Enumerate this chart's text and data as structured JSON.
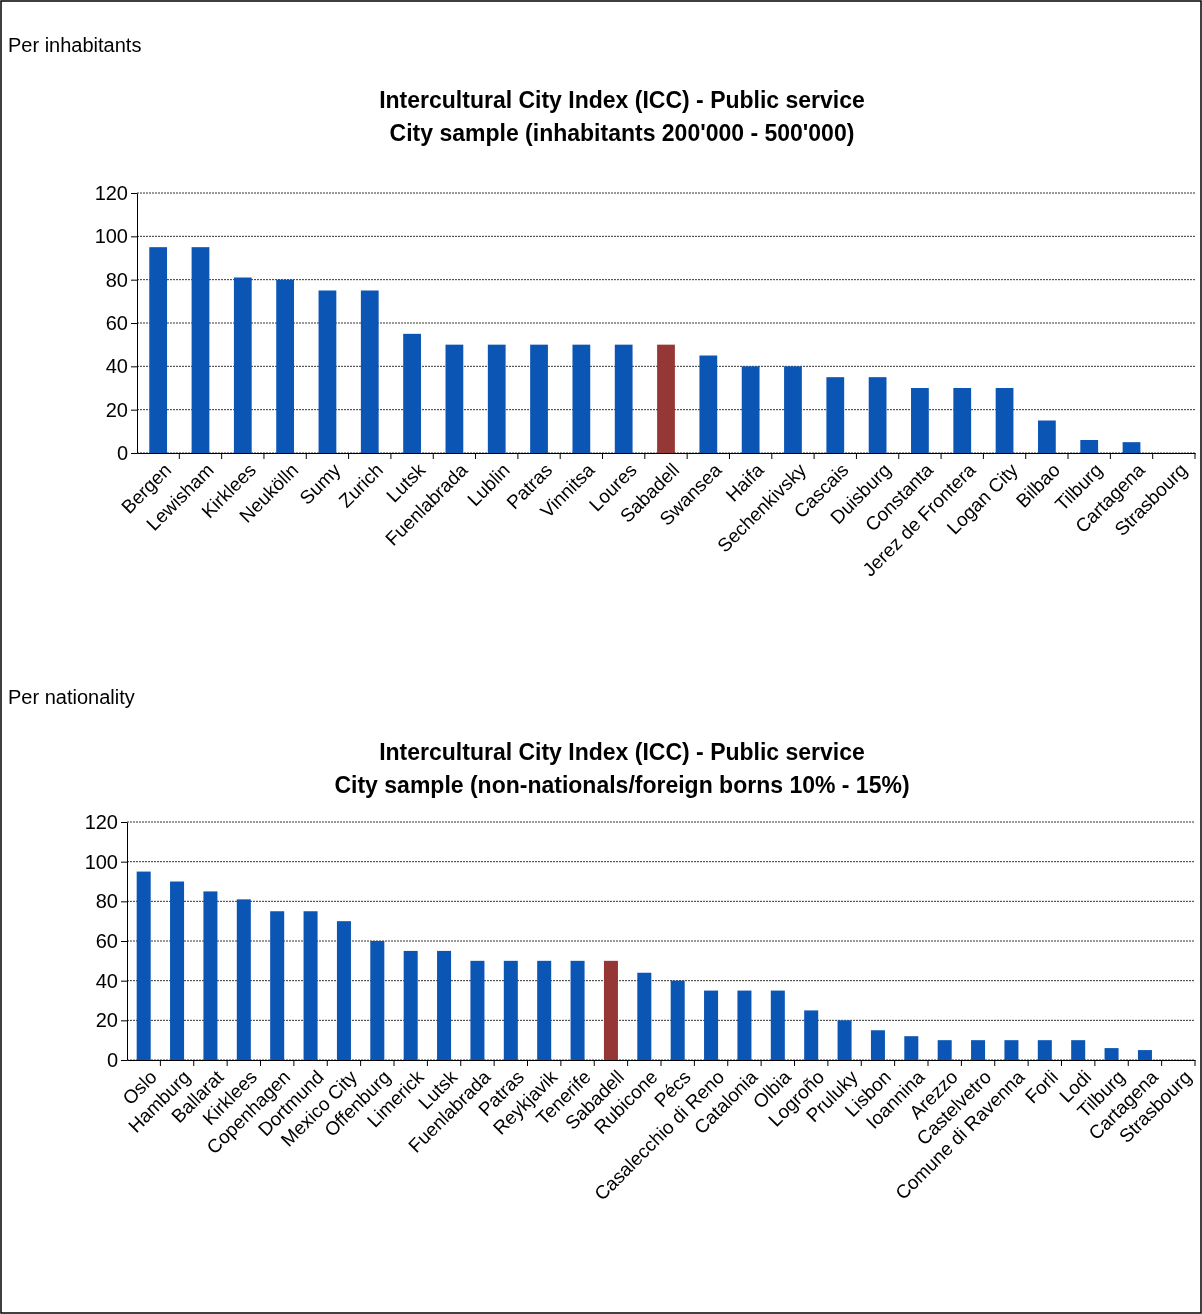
{
  "chart_data": [
    {
      "type": "bar",
      "title": "Intercultural City Index (ICC) - Public service\nCity sample (inhabitants 200'000 - 500'000)",
      "annotations": [
        "Per inhabitants"
      ],
      "categories": [
        "Bergen",
        "Lewisham",
        "Kirklees",
        "Neukölln",
        "Sumy",
        "Zurich",
        "Lutsk",
        "Fuenlabrada",
        "Lublin",
        "Patras",
        "Vinnitsa",
        "Loures",
        "Sabadell",
        "Swansea",
        "Haifa",
        "Sechenkivsky",
        "Cascais",
        "Duisburg",
        "Constanta",
        "Jerez de Frontera",
        "Logan City",
        "Bilbao",
        "Tilburg",
        "Cartagena",
        "Strasbourg"
      ],
      "values": [
        95,
        95,
        81,
        80,
        75,
        75,
        55,
        50,
        50,
        50,
        50,
        50,
        50,
        45,
        40,
        40,
        35,
        35,
        30,
        30,
        30,
        15,
        6,
        5,
        0
      ],
      "colors": [
        "#0b55b5",
        "#0b55b5",
        "#0b55b5",
        "#0b55b5",
        "#0b55b5",
        "#0b55b5",
        "#0b55b5",
        "#0b55b5",
        "#0b55b5",
        "#0b55b5",
        "#0b55b5",
        "#0b55b5",
        "#953735",
        "#0b55b5",
        "#0b55b5",
        "#0b55b5",
        "#0b55b5",
        "#0b55b5",
        "#0b55b5",
        "#0b55b5",
        "#0b55b5",
        "#0b55b5",
        "#0b55b5",
        "#0b55b5",
        "#0b55b5"
      ],
      "ylim": [
        0,
        120
      ],
      "yticks": [
        0,
        20,
        40,
        60,
        80,
        100,
        120
      ],
      "grid": "y"
    },
    {
      "type": "bar",
      "title": "Intercultural City Index (ICC) - Public service\nCity sample (non-nationals/foreign borns 10% - 15%)",
      "annotations": [
        "Per nationality"
      ],
      "categories": [
        "Oslo",
        "Hamburg",
        "Ballarat",
        "Kirklees",
        "Copenhagen",
        "Dortmund",
        "Mexico City",
        "Offenburg",
        "Limerick",
        "Lutsk",
        "Fuenlabrada",
        "Patras",
        "Reykjavik",
        "Tenerife",
        "Sabadell",
        "Rubicone",
        "Pécs",
        "Casalecchio di Reno",
        "Catalonia",
        "Olbia",
        "Logroño",
        "Pruluky",
        "Lisbon",
        "Ioannina",
        "Arezzo",
        "Castelvetro",
        "Comune di Ravenna",
        "Forli",
        "Lodi",
        "Tilburg",
        "Cartagena",
        "Strasbourg"
      ],
      "values": [
        95,
        90,
        85,
        81,
        75,
        75,
        70,
        60,
        55,
        55,
        50,
        50,
        50,
        50,
        50,
        44,
        40,
        35,
        35,
        35,
        25,
        20,
        15,
        12,
        10,
        10,
        10,
        10,
        10,
        6,
        5,
        0
      ],
      "colors": [
        "#0b55b5",
        "#0b55b5",
        "#0b55b5",
        "#0b55b5",
        "#0b55b5",
        "#0b55b5",
        "#0b55b5",
        "#0b55b5",
        "#0b55b5",
        "#0b55b5",
        "#0b55b5",
        "#0b55b5",
        "#0b55b5",
        "#0b55b5",
        "#953735",
        "#0b55b5",
        "#0b55b5",
        "#0b55b5",
        "#0b55b5",
        "#0b55b5",
        "#0b55b5",
        "#0b55b5",
        "#0b55b5",
        "#0b55b5",
        "#0b55b5",
        "#0b55b5",
        "#0b55b5",
        "#0b55b5",
        "#0b55b5",
        "#0b55b5",
        "#0b55b5",
        "#0b55b5"
      ],
      "ylim": [
        0,
        120
      ],
      "yticks": [
        0,
        20,
        40,
        60,
        80,
        100,
        120
      ],
      "grid": "y"
    }
  ]
}
